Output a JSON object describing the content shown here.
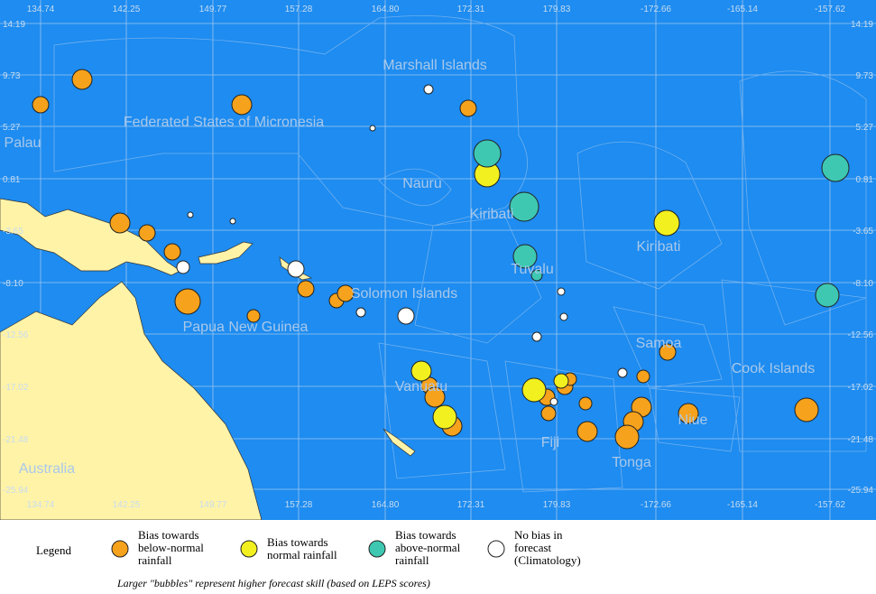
{
  "map": {
    "top_ticks": [
      "134.74",
      "142.25",
      "149.77",
      "157.28",
      "164.80",
      "172.31",
      "179.83",
      "-172.66",
      "-165.14",
      "-157.62"
    ],
    "side_ticks": [
      "14.19",
      "9.73",
      "5.27",
      "0.81",
      "-3.65",
      "-8.10",
      "-12.56",
      "-17.02",
      "-21.48",
      "-25.94"
    ],
    "regions": [
      "Marshall Islands",
      "Federated States of Micronesia",
      "Palau",
      "Nauru",
      "Kiribati",
      "Kiribati",
      "Tuvalu",
      "Solomon Islands",
      "Papua New Guinea",
      "Samoa",
      "Cook Islands",
      "Vanuatu",
      "Niue",
      "Fiji",
      "Tonga",
      "Australia"
    ]
  },
  "legend": {
    "title": "Legend",
    "items": [
      {
        "lines": [
          "Bias towards",
          "below-normal",
          "rainfall"
        ]
      },
      {
        "lines": [
          "Bias towards",
          "normal rainfall"
        ]
      },
      {
        "lines": [
          "Bias towards",
          "above-normal",
          "rainfall"
        ]
      },
      {
        "lines": [
          "No bias in",
          "forecast",
          "(Climatology)"
        ]
      }
    ],
    "note": "Larger \"bubbles\" represent higher forecast skill (based on LEPS scores)"
  }
}
